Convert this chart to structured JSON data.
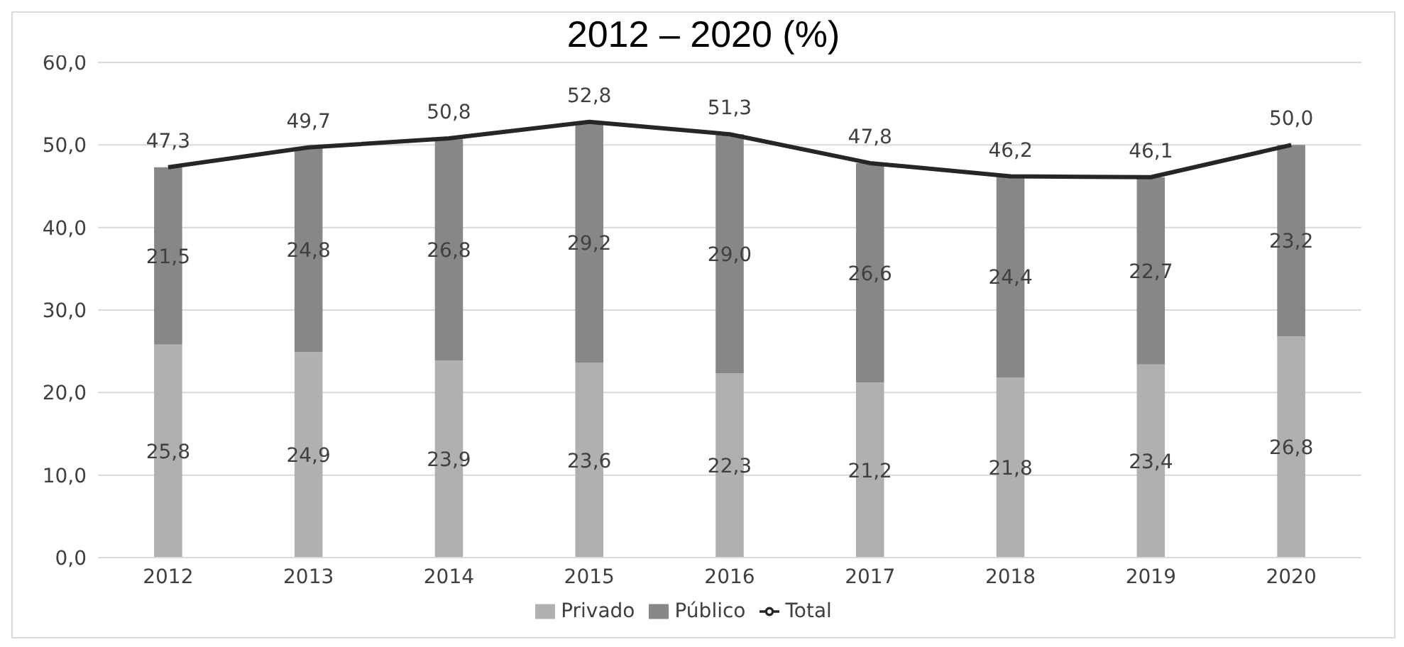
{
  "chart_data": {
    "type": "bar",
    "title": "2012 – 2020 (%)",
    "stacked": true,
    "categories": [
      "2012",
      "2013",
      "2014",
      "2015",
      "2016",
      "2017",
      "2018",
      "2019",
      "2020"
    ],
    "series": [
      {
        "name": "Privado",
        "color": "#b0b0b0",
        "values": [
          25.8,
          24.9,
          23.9,
          23.6,
          22.3,
          21.2,
          21.8,
          23.4,
          26.8
        ],
        "value_labels": [
          "25,8",
          "24,9",
          "23,9",
          "23,6",
          "22,3",
          "21,2",
          "21,8",
          "23,4",
          "26,8"
        ]
      },
      {
        "name": "Público",
        "color": "#878787",
        "values": [
          21.5,
          24.8,
          26.8,
          29.2,
          29.0,
          26.6,
          24.4,
          22.7,
          23.2
        ],
        "value_labels": [
          "21,5",
          "24,8",
          "26,8",
          "29,2",
          "29,0",
          "26,6",
          "24,4",
          "22,7",
          "23,2"
        ]
      },
      {
        "name": "Total",
        "type": "line",
        "color": "#262626",
        "values": [
          47.3,
          49.7,
          50.8,
          52.8,
          51.3,
          47.8,
          46.2,
          46.1,
          50.0
        ],
        "value_labels": [
          "47,3",
          "49,7",
          "50,8",
          "52,8",
          "51,3",
          "47,8",
          "46,2",
          "46,1",
          "50,0"
        ]
      }
    ],
    "ylim": [
      0,
      60
    ],
    "yticks": [
      {
        "value": 0,
        "label": "0,0"
      },
      {
        "value": 10,
        "label": "10,0"
      },
      {
        "value": 20,
        "label": "20,0"
      },
      {
        "value": 30,
        "label": "30,0"
      },
      {
        "value": 40,
        "label": "40,0"
      },
      {
        "value": 50,
        "label": "50,0"
      },
      {
        "value": 60,
        "label": "60,0"
      }
    ],
    "grid": "y",
    "legend": "bottom",
    "marker": "none",
    "line_style": "solid"
  }
}
